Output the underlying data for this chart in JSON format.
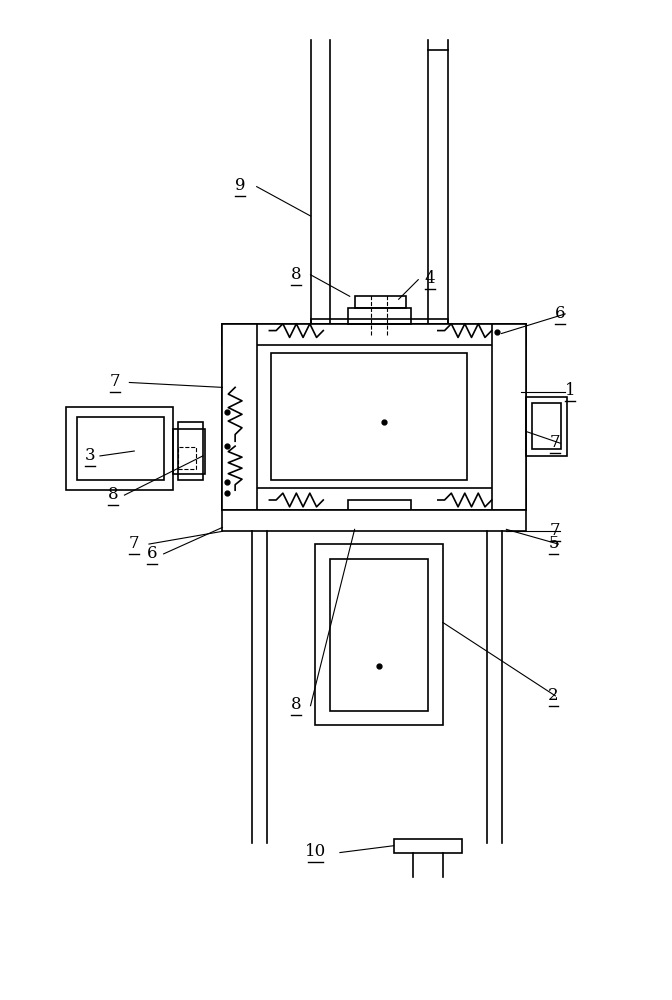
{
  "bg_color": "#ffffff",
  "line_color": "#000000",
  "fig_width": 6.72,
  "fig_height": 10.0,
  "lw": 1.2,
  "thin_lw": 0.8,
  "fs": 12
}
